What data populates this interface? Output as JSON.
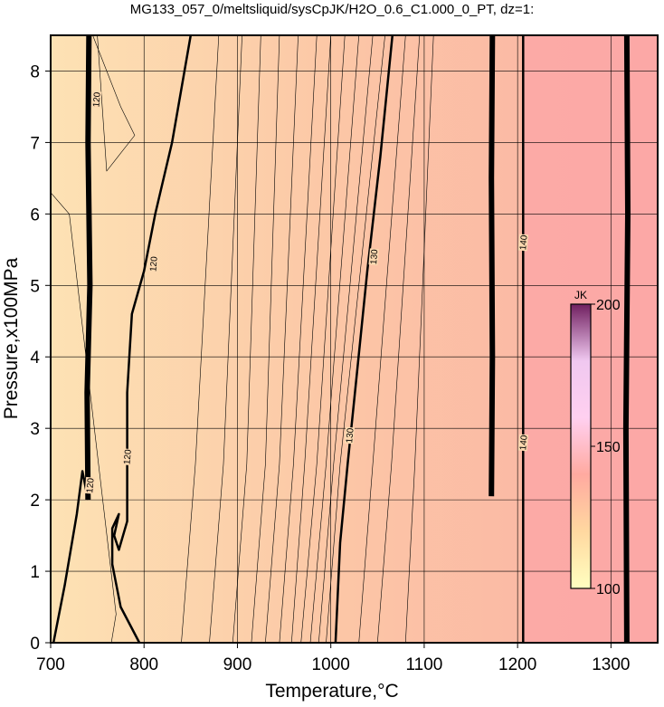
{
  "chart_data": {
    "type": "contour",
    "title": "MG133_057_0/meltsliquid/sysCpJK/H2O_0.6_C1.000_0_PT, dz=1:",
    "x_label": "Temperature,°C",
    "y_label": "Pressure,x100MPa",
    "xlim": [
      700,
      1350
    ],
    "ylim": [
      0,
      8.5
    ],
    "xticks": [
      700,
      800,
      900,
      1000,
      1100,
      1200,
      1300
    ],
    "yticks": [
      0,
      1,
      2,
      3,
      4,
      5,
      6,
      7,
      8
    ],
    "grid": true,
    "fill": [
      {
        "x": 700,
        "color": "#fde2b4"
      },
      {
        "x": 1000,
        "color": "#fcc7a6"
      },
      {
        "x": 1204,
        "color": "#fbbaa5"
      },
      {
        "x": 1206,
        "color": "#fcaaa6"
      },
      {
        "x": 1350,
        "color": "#fca8a6"
      }
    ],
    "contours": [
      {
        "level": 120,
        "bold": true,
        "x": [
          703,
          715,
          728,
          734,
          740
        ],
        "y": [
          0,
          0.8,
          1.8,
          2.4,
          2.0
        ]
      },
      {
        "level": 120,
        "bold": true,
        "heavy": true,
        "x": [
          740,
          739,
          742,
          740,
          741
        ],
        "y": [
          2.0,
          3.5,
          5.0,
          7.0,
          8.5
        ]
      },
      {
        "level": 120,
        "bold": true,
        "x": [
          795,
          775,
          766,
          766,
          773,
          768,
          773,
          782,
          782,
          787,
          800,
          812,
          830,
          850
        ],
        "y": [
          0,
          0.5,
          1.1,
          1.6,
          1.8,
          1.5,
          1.3,
          1.7,
          3.5,
          4.6,
          5.2,
          6.0,
          7.0,
          8.5
        ]
      },
      {
        "level": 130,
        "bold": true,
        "x": [
          1005,
          1010,
          1018,
          1029,
          1039,
          1053,
          1066
        ],
        "y": [
          0,
          1.4,
          2.5,
          3.9,
          5.2,
          6.8,
          8.5
        ]
      },
      {
        "level": 140,
        "bold": true,
        "heavy": true,
        "x": [
          1172,
          1173,
          1172,
          1173
        ],
        "y": [
          2.05,
          4.0,
          6.5,
          8.5
        ]
      },
      {
        "level": 140,
        "bold": true,
        "x": [
          1206,
          1206
        ],
        "y": [
          0,
          8.5
        ]
      },
      {
        "level": 150,
        "bold": true,
        "heavy": true,
        "x": [
          1317,
          1316,
          1318,
          1317
        ],
        "y": [
          0,
          3.0,
          6.0,
          8.5
        ]
      },
      {
        "level": 118,
        "x": [
          840,
          855,
          880
        ],
        "y": [
          0,
          2.5,
          8.5
        ]
      },
      {
        "level": 119,
        "x": [
          870,
          885,
          905
        ],
        "y": [
          0,
          2.5,
          8.5
        ]
      },
      {
        "level": 121,
        "x": [
          895,
          910,
          925
        ],
        "y": [
          0,
          2.5,
          8.5
        ]
      },
      {
        "level": 122,
        "x": [
          915,
          930,
          945
        ],
        "y": [
          0,
          2.5,
          8.5
        ]
      },
      {
        "level": 123,
        "x": [
          930,
          945,
          965
        ],
        "y": [
          0,
          2.5,
          8.5
        ]
      },
      {
        "level": 124,
        "x": [
          945,
          960,
          985
        ],
        "y": [
          0,
          2.5,
          8.5
        ]
      },
      {
        "level": 125,
        "x": [
          958,
          972,
          1000
        ],
        "y": [
          0,
          2.5,
          8.5
        ]
      },
      {
        "level": 126,
        "x": [
          968,
          985,
          1015
        ],
        "y": [
          0,
          2.5,
          8.5
        ]
      },
      {
        "level": 127,
        "x": [
          978,
          995,
          1030
        ],
        "y": [
          0,
          2.5,
          8.5
        ]
      },
      {
        "level": 128,
        "x": [
          987,
          1003,
          1045
        ],
        "y": [
          0,
          2.5,
          8.5
        ]
      },
      {
        "level": 129,
        "x": [
          995,
          1010,
          1058
        ],
        "y": [
          0,
          2.5,
          8.5
        ]
      },
      {
        "level": 131,
        "x": [
          1030,
          1045,
          1080
        ],
        "y": [
          0,
          2.5,
          8.5
        ]
      },
      {
        "level": 132,
        "x": [
          1050,
          1065,
          1095
        ],
        "y": [
          0,
          2.5,
          8.5
        ]
      },
      {
        "level": 133,
        "x": [
          1080,
          1090,
          1110
        ],
        "y": [
          0,
          2.5,
          8.5
        ]
      },
      {
        "level": 117,
        "x": [
          765,
          770,
          720,
          700
        ],
        "y": [
          0,
          0.4,
          6.0,
          6.3
        ]
      },
      {
        "level": 116,
        "x": [
          745,
          775,
          790,
          760,
          750
        ],
        "y": [
          8.5,
          7.5,
          7.1,
          6.6,
          8.5
        ]
      }
    ],
    "labels": [
      {
        "value": 120,
        "x": 742,
        "y": 2.2
      },
      {
        "value": 120,
        "x": 749,
        "y": 7.6
      },
      {
        "value": 120,
        "x": 782,
        "y": 2.6
      },
      {
        "value": 120,
        "x": 810,
        "y": 5.3
      },
      {
        "value": 130,
        "x": 1020,
        "y": 2.9
      },
      {
        "value": 130,
        "x": 1046,
        "y": 5.4
      },
      {
        "value": 140,
        "x": 1206,
        "y": 2.8
      },
      {
        "value": 140,
        "x": 1206,
        "y": 5.6
      }
    ],
    "colorbar": {
      "label": "JK",
      "lim": [
        100,
        200
      ],
      "ticks": [
        100,
        150,
        200
      ],
      "colors": [
        "#ffffc0",
        "#ffd8a0",
        "#ffaaa0",
        "#ffd0f0",
        "#f0c8f0",
        "#702060"
      ]
    }
  }
}
